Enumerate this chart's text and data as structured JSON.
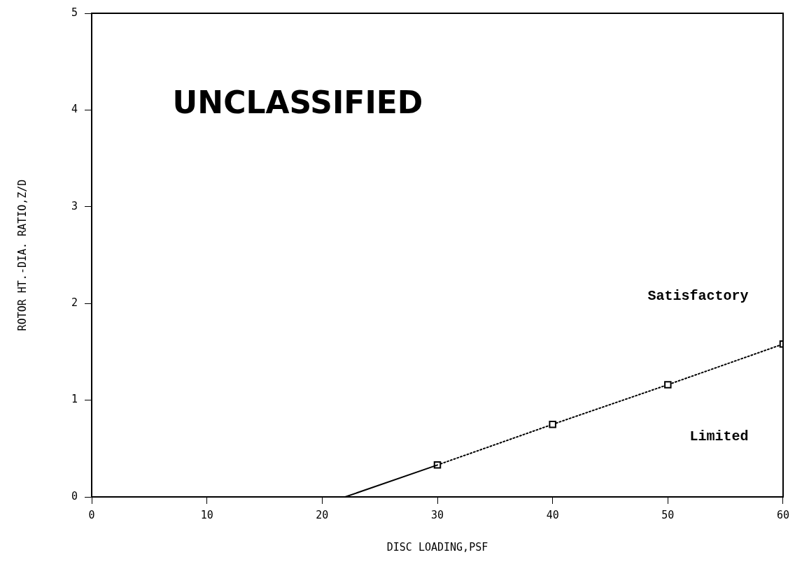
{
  "chart_data": {
    "type": "line",
    "xlabel": "DISC LOADING,PSF",
    "ylabel": "ROTOR HT.-DIA. RATIO,Z/D",
    "xlim": [
      0,
      60
    ],
    "xticks": [
      0,
      10,
      20,
      30,
      40,
      50,
      60
    ],
    "ylim": [
      0,
      5
    ],
    "yticks": [
      0,
      1,
      2,
      3,
      4,
      5
    ],
    "grid": false,
    "legend": false,
    "series": [
      {
        "color": "#000000",
        "x": [
          22,
          30
        ],
        "values": [
          0,
          0.33
        ],
        "line_style": "solid"
      },
      {
        "color": "#000000",
        "x": [
          30,
          40,
          50,
          60
        ],
        "values": [
          0.33,
          0.75,
          1.16,
          1.58
        ],
        "line_style": "dotted",
        "marker": "square"
      }
    ],
    "annotations": [
      "UNCLASSIFIED",
      "Satisfactory",
      "Limited"
    ]
  }
}
